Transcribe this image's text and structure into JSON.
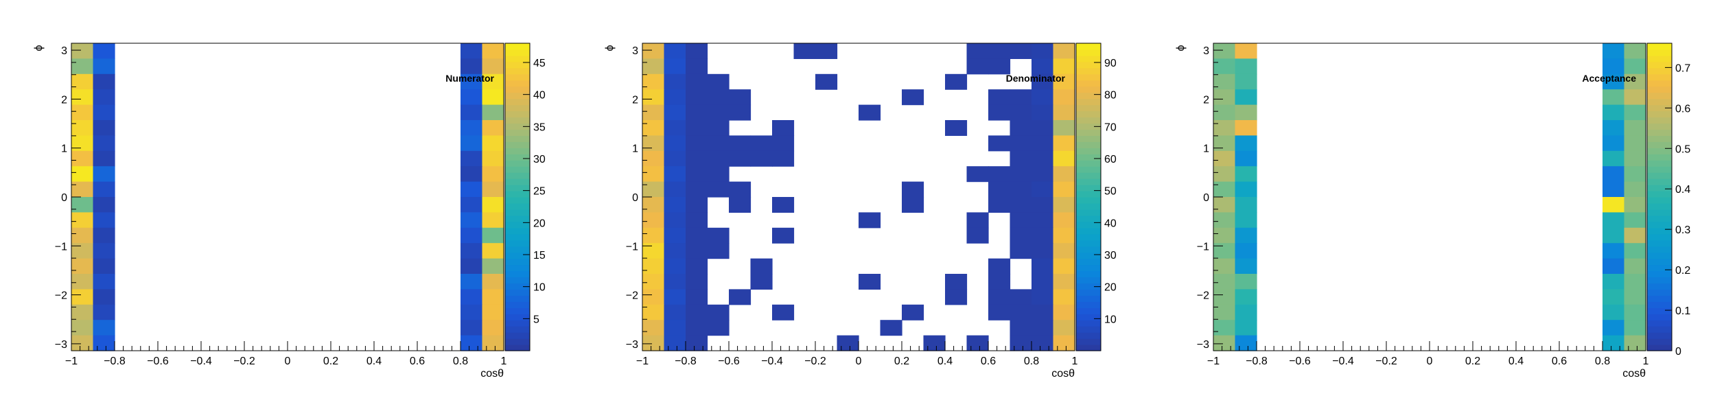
{
  "chart_data": [
    {
      "type": "heatmap",
      "title": "Numerator",
      "xlabel": "cosθ",
      "ylabel": "ϕ",
      "xlim": [
        -1,
        1
      ],
      "ylim": [
        -3.14159,
        3.14159
      ],
      "x_bins": 20,
      "y_bins": 20,
      "z_range": [
        0,
        48
      ],
      "z_ticks": [
        5,
        10,
        15,
        20,
        25,
        30,
        35,
        40,
        45
      ],
      "x_ticks": [
        -1,
        -0.8,
        -0.6,
        -0.4,
        -0.2,
        0,
        0.2,
        0.4,
        0.6,
        0.8,
        1
      ],
      "y_ticks": [
        -3,
        -2,
        -1,
        0,
        1,
        2,
        3
      ],
      "grid": false,
      "legend": "color-bar right",
      "z": [
        [
          36,
          6,
          0,
          0,
          0,
          0,
          0,
          0,
          0,
          0,
          0,
          0,
          0,
          0,
          0,
          0,
          0,
          0,
          3,
          42
        ],
        [
          32,
          8,
          0,
          0,
          0,
          0,
          0,
          0,
          0,
          0,
          0,
          0,
          0,
          0,
          0,
          0,
          0,
          0,
          2,
          40
        ],
        [
          44,
          2,
          0,
          0,
          0,
          0,
          0,
          0,
          0,
          0,
          0,
          0,
          0,
          0,
          0,
          0,
          0,
          0,
          7,
          46
        ],
        [
          46,
          3,
          0,
          0,
          0,
          0,
          0,
          0,
          0,
          0,
          0,
          0,
          0,
          0,
          0,
          0,
          0,
          0,
          6,
          47
        ],
        [
          43,
          4,
          0,
          0,
          0,
          0,
          0,
          0,
          0,
          0,
          0,
          0,
          0,
          0,
          0,
          0,
          0,
          0,
          4,
          32
        ],
        [
          45,
          2,
          0,
          0,
          0,
          0,
          0,
          0,
          0,
          0,
          0,
          0,
          0,
          0,
          0,
          0,
          0,
          0,
          7,
          42
        ],
        [
          46,
          3,
          0,
          0,
          0,
          0,
          0,
          0,
          0,
          0,
          0,
          0,
          0,
          0,
          0,
          0,
          0,
          0,
          8,
          45
        ],
        [
          42,
          2,
          0,
          0,
          0,
          0,
          0,
          0,
          0,
          0,
          0,
          0,
          0,
          0,
          0,
          0,
          0,
          0,
          3,
          44
        ],
        [
          47,
          8,
          0,
          0,
          0,
          0,
          0,
          0,
          0,
          0,
          0,
          0,
          0,
          0,
          0,
          0,
          0,
          0,
          2,
          42
        ],
        [
          40,
          4,
          0,
          0,
          0,
          0,
          0,
          0,
          0,
          0,
          0,
          0,
          0,
          0,
          0,
          0,
          0,
          0,
          6,
          40
        ],
        [
          30,
          2,
          0,
          0,
          0,
          0,
          0,
          0,
          0,
          0,
          0,
          0,
          0,
          0,
          0,
          0,
          0,
          0,
          4,
          46
        ],
        [
          44,
          4,
          0,
          0,
          0,
          0,
          0,
          0,
          0,
          0,
          0,
          0,
          0,
          0,
          0,
          0,
          0,
          0,
          7,
          44
        ],
        [
          40,
          2,
          0,
          0,
          0,
          0,
          0,
          0,
          0,
          0,
          0,
          0,
          0,
          0,
          0,
          0,
          0,
          0,
          5,
          30
        ],
        [
          38,
          3,
          0,
          0,
          0,
          0,
          0,
          0,
          0,
          0,
          0,
          0,
          0,
          0,
          0,
          0,
          0,
          0,
          3,
          44
        ],
        [
          40,
          2,
          0,
          0,
          0,
          0,
          0,
          0,
          0,
          0,
          0,
          0,
          0,
          0,
          0,
          0,
          0,
          0,
          2,
          33
        ],
        [
          38,
          4,
          0,
          0,
          0,
          0,
          0,
          0,
          0,
          0,
          0,
          0,
          0,
          0,
          0,
          0,
          0,
          0,
          8,
          40
        ],
        [
          44,
          2,
          0,
          0,
          0,
          0,
          0,
          0,
          0,
          0,
          0,
          0,
          0,
          0,
          0,
          0,
          0,
          0,
          5,
          42
        ],
        [
          37,
          3,
          0,
          0,
          0,
          0,
          0,
          0,
          0,
          0,
          0,
          0,
          0,
          0,
          0,
          0,
          0,
          0,
          4,
          42
        ],
        [
          36,
          8,
          0,
          0,
          0,
          0,
          0,
          0,
          0,
          0,
          0,
          0,
          0,
          0,
          0,
          0,
          0,
          0,
          3,
          41
        ],
        [
          38,
          6,
          0,
          0,
          0,
          0,
          0,
          0,
          0,
          0,
          0,
          0,
          0,
          0,
          0,
          0,
          0,
          0,
          6,
          40
        ]
      ]
    },
    {
      "type": "heatmap",
      "title": "Denominator",
      "xlabel": "cosθ",
      "ylabel": "ϕ",
      "xlim": [
        -1,
        1
      ],
      "ylim": [
        -3.14159,
        3.14159
      ],
      "x_bins": 20,
      "y_bins": 20,
      "z_range": [
        0,
        96
      ],
      "z_ticks": [
        10,
        20,
        30,
        40,
        50,
        60,
        70,
        80,
        90
      ],
      "x_ticks": [
        -1,
        -0.8,
        -0.6,
        -0.4,
        -0.2,
        0,
        0.2,
        0.4,
        0.6,
        0.8,
        1
      ],
      "y_ticks": [
        -3,
        -2,
        -1,
        0,
        1,
        2,
        3
      ],
      "grid": false,
      "legend": "color-bar right",
      "z": [
        [
          80,
          8,
          2,
          0,
          0,
          0,
          0,
          2,
          2,
          0,
          0,
          0,
          0,
          0,
          0,
          2,
          2,
          2,
          3,
          80
        ],
        [
          75,
          9,
          2,
          0,
          0,
          0,
          0,
          0,
          0,
          0,
          0,
          0,
          0,
          0,
          0,
          2,
          2,
          0,
          4,
          88
        ],
        [
          85,
          6,
          2,
          2,
          0,
          0,
          0,
          0,
          2,
          0,
          0,
          0,
          0,
          0,
          2,
          0,
          0,
          0,
          3,
          85
        ],
        [
          88,
          7,
          2,
          2,
          2,
          0,
          0,
          0,
          0,
          0,
          0,
          0,
          2,
          0,
          0,
          0,
          2,
          2,
          4,
          82
        ],
        [
          80,
          8,
          2,
          2,
          2,
          0,
          0,
          0,
          0,
          0,
          2,
          0,
          0,
          0,
          0,
          0,
          2,
          2,
          3,
          80
        ],
        [
          85,
          6,
          2,
          2,
          0,
          0,
          2,
          0,
          0,
          0,
          0,
          0,
          0,
          0,
          2,
          0,
          0,
          2,
          2,
          70
        ],
        [
          78,
          7,
          2,
          2,
          2,
          2,
          2,
          0,
          0,
          0,
          0,
          0,
          0,
          0,
          0,
          0,
          2,
          2,
          2,
          85
        ],
        [
          82,
          6,
          2,
          2,
          2,
          2,
          2,
          0,
          0,
          0,
          0,
          0,
          0,
          0,
          0,
          0,
          0,
          2,
          2,
          90
        ],
        [
          84,
          8,
          2,
          2,
          0,
          0,
          0,
          0,
          0,
          0,
          0,
          0,
          0,
          0,
          0,
          2,
          2,
          2,
          2,
          80
        ],
        [
          75,
          6,
          2,
          2,
          2,
          0,
          0,
          0,
          0,
          0,
          0,
          0,
          2,
          0,
          0,
          0,
          2,
          2,
          3,
          84
        ],
        [
          80,
          7,
          2,
          0,
          2,
          0,
          2,
          0,
          0,
          0,
          0,
          0,
          2,
          0,
          0,
          0,
          2,
          2,
          2,
          78
        ],
        [
          82,
          6,
          2,
          0,
          0,
          0,
          0,
          0,
          0,
          0,
          2,
          0,
          0,
          0,
          0,
          2,
          0,
          2,
          2,
          82
        ],
        [
          85,
          7,
          2,
          2,
          0,
          0,
          2,
          0,
          0,
          0,
          0,
          0,
          0,
          0,
          0,
          2,
          0,
          2,
          2,
          84
        ],
        [
          90,
          6,
          2,
          2,
          0,
          0,
          0,
          0,
          0,
          0,
          0,
          0,
          0,
          0,
          0,
          0,
          0,
          2,
          2,
          80
        ],
        [
          88,
          7,
          2,
          0,
          0,
          2,
          0,
          0,
          0,
          0,
          0,
          0,
          0,
          0,
          0,
          0,
          2,
          0,
          3,
          85
        ],
        [
          86,
          6,
          2,
          0,
          0,
          2,
          0,
          0,
          0,
          0,
          2,
          0,
          0,
          0,
          2,
          0,
          2,
          0,
          3,
          80
        ],
        [
          84,
          8,
          2,
          0,
          2,
          0,
          0,
          0,
          0,
          0,
          0,
          0,
          0,
          0,
          2,
          0,
          2,
          2,
          3,
          85
        ],
        [
          86,
          6,
          2,
          2,
          0,
          0,
          2,
          0,
          0,
          0,
          0,
          0,
          2,
          0,
          0,
          0,
          2,
          2,
          2,
          82
        ],
        [
          80,
          7,
          2,
          2,
          0,
          0,
          0,
          0,
          0,
          0,
          0,
          2,
          0,
          0,
          0,
          0,
          0,
          2,
          2,
          78
        ],
        [
          78,
          7,
          2,
          0,
          0,
          0,
          0,
          0,
          0,
          2,
          0,
          0,
          0,
          2,
          0,
          2,
          0,
          2,
          2,
          82
        ]
      ]
    },
    {
      "type": "heatmap",
      "title": "Acceptance",
      "xlabel": "cosθ",
      "ylabel": "ϕ",
      "xlim": [
        -1,
        1
      ],
      "ylim": [
        -3.14159,
        3.14159
      ],
      "x_bins": 20,
      "y_bins": 20,
      "z_range": [
        0,
        0.76
      ],
      "z_ticks": [
        0,
        0.1,
        0.2,
        0.3,
        0.4,
        0.5,
        0.6,
        0.7
      ],
      "x_ticks": [
        -1,
        -0.8,
        -0.6,
        -0.4,
        -0.2,
        0,
        0.2,
        0.4,
        0.6,
        0.8,
        1
      ],
      "y_ticks": [
        -3,
        -2,
        -1,
        0,
        1,
        2,
        3
      ],
      "grid": false,
      "legend": "color-bar right",
      "z": [
        [
          0.5,
          0.65,
          0,
          0,
          0,
          0,
          0,
          0,
          0,
          0,
          0,
          0,
          0,
          0,
          0,
          0,
          0,
          0,
          0.22,
          0.5
        ],
        [
          0.45,
          0.42,
          0,
          0,
          0,
          0,
          0,
          0,
          0,
          0,
          0,
          0,
          0,
          0,
          0,
          0,
          0,
          0,
          0.2,
          0.46
        ],
        [
          0.5,
          0.42,
          0,
          0,
          0,
          0,
          0,
          0,
          0,
          0,
          0,
          0,
          0,
          0,
          0,
          0,
          0,
          0,
          0.22,
          0.54
        ],
        [
          0.52,
          0.35,
          0,
          0,
          0,
          0,
          0,
          0,
          0,
          0,
          0,
          0,
          0,
          0,
          0,
          0,
          0,
          0,
          0.46,
          0.58
        ],
        [
          0.5,
          0.52,
          0,
          0,
          0,
          0,
          0,
          0,
          0,
          0,
          0,
          0,
          0,
          0,
          0,
          0,
          0,
          0,
          0.35,
          0.46
        ],
        [
          0.55,
          0.65,
          0,
          0,
          0,
          0,
          0,
          0,
          0,
          0,
          0,
          0,
          0,
          0,
          0,
          0,
          0,
          0,
          0.25,
          0.5
        ],
        [
          0.52,
          0.25,
          0,
          0,
          0,
          0,
          0,
          0,
          0,
          0,
          0,
          0,
          0,
          0,
          0,
          0,
          0,
          0,
          0.22,
          0.5
        ],
        [
          0.58,
          0.22,
          0,
          0,
          0,
          0,
          0,
          0,
          0,
          0,
          0,
          0,
          0,
          0,
          0,
          0,
          0,
          0,
          0.35,
          0.5
        ],
        [
          0.55,
          0.38,
          0,
          0,
          0,
          0,
          0,
          0,
          0,
          0,
          0,
          0,
          0,
          0,
          0,
          0,
          0,
          0,
          0.16,
          0.48
        ],
        [
          0.48,
          0.3,
          0,
          0,
          0,
          0,
          0,
          0,
          0,
          0,
          0,
          0,
          0,
          0,
          0,
          0,
          0,
          0,
          0.16,
          0.5
        ],
        [
          0.55,
          0.35,
          0,
          0,
          0,
          0,
          0,
          0,
          0,
          0,
          0,
          0,
          0,
          0,
          0,
          0,
          0,
          0,
          0.74,
          0.52
        ],
        [
          0.5,
          0.35,
          0,
          0,
          0,
          0,
          0,
          0,
          0,
          0,
          0,
          0,
          0,
          0,
          0,
          0,
          0,
          0,
          0.35,
          0.46
        ],
        [
          0.52,
          0.25,
          0,
          0,
          0,
          0,
          0,
          0,
          0,
          0,
          0,
          0,
          0,
          0,
          0,
          0,
          0,
          0,
          0.35,
          0.58
        ],
        [
          0.48,
          0.22,
          0,
          0,
          0,
          0,
          0,
          0,
          0,
          0,
          0,
          0,
          0,
          0,
          0,
          0,
          0,
          0,
          0.2,
          0.46
        ],
        [
          0.52,
          0.25,
          0,
          0,
          0,
          0,
          0,
          0,
          0,
          0,
          0,
          0,
          0,
          0,
          0,
          0,
          0,
          0,
          0.16,
          0.5
        ],
        [
          0.5,
          0.45,
          0,
          0,
          0,
          0,
          0,
          0,
          0,
          0,
          0,
          0,
          0,
          0,
          0,
          0,
          0,
          0,
          0.35,
          0.48
        ],
        [
          0.5,
          0.38,
          0,
          0,
          0,
          0,
          0,
          0,
          0,
          0,
          0,
          0,
          0,
          0,
          0,
          0,
          0,
          0,
          0.38,
          0.48
        ],
        [
          0.5,
          0.35,
          0,
          0,
          0,
          0,
          0,
          0,
          0,
          0,
          0,
          0,
          0,
          0,
          0,
          0,
          0,
          0,
          0.35,
          0.46
        ],
        [
          0.46,
          0.35,
          0,
          0,
          0,
          0,
          0,
          0,
          0,
          0,
          0,
          0,
          0,
          0,
          0,
          0,
          0,
          0,
          0.22,
          0.46
        ],
        [
          0.52,
          0.2,
          0,
          0,
          0,
          0,
          0,
          0,
          0,
          0,
          0,
          0,
          0,
          0,
          0,
          0,
          0,
          0,
          0.3,
          0.52
        ]
      ]
    }
  ]
}
